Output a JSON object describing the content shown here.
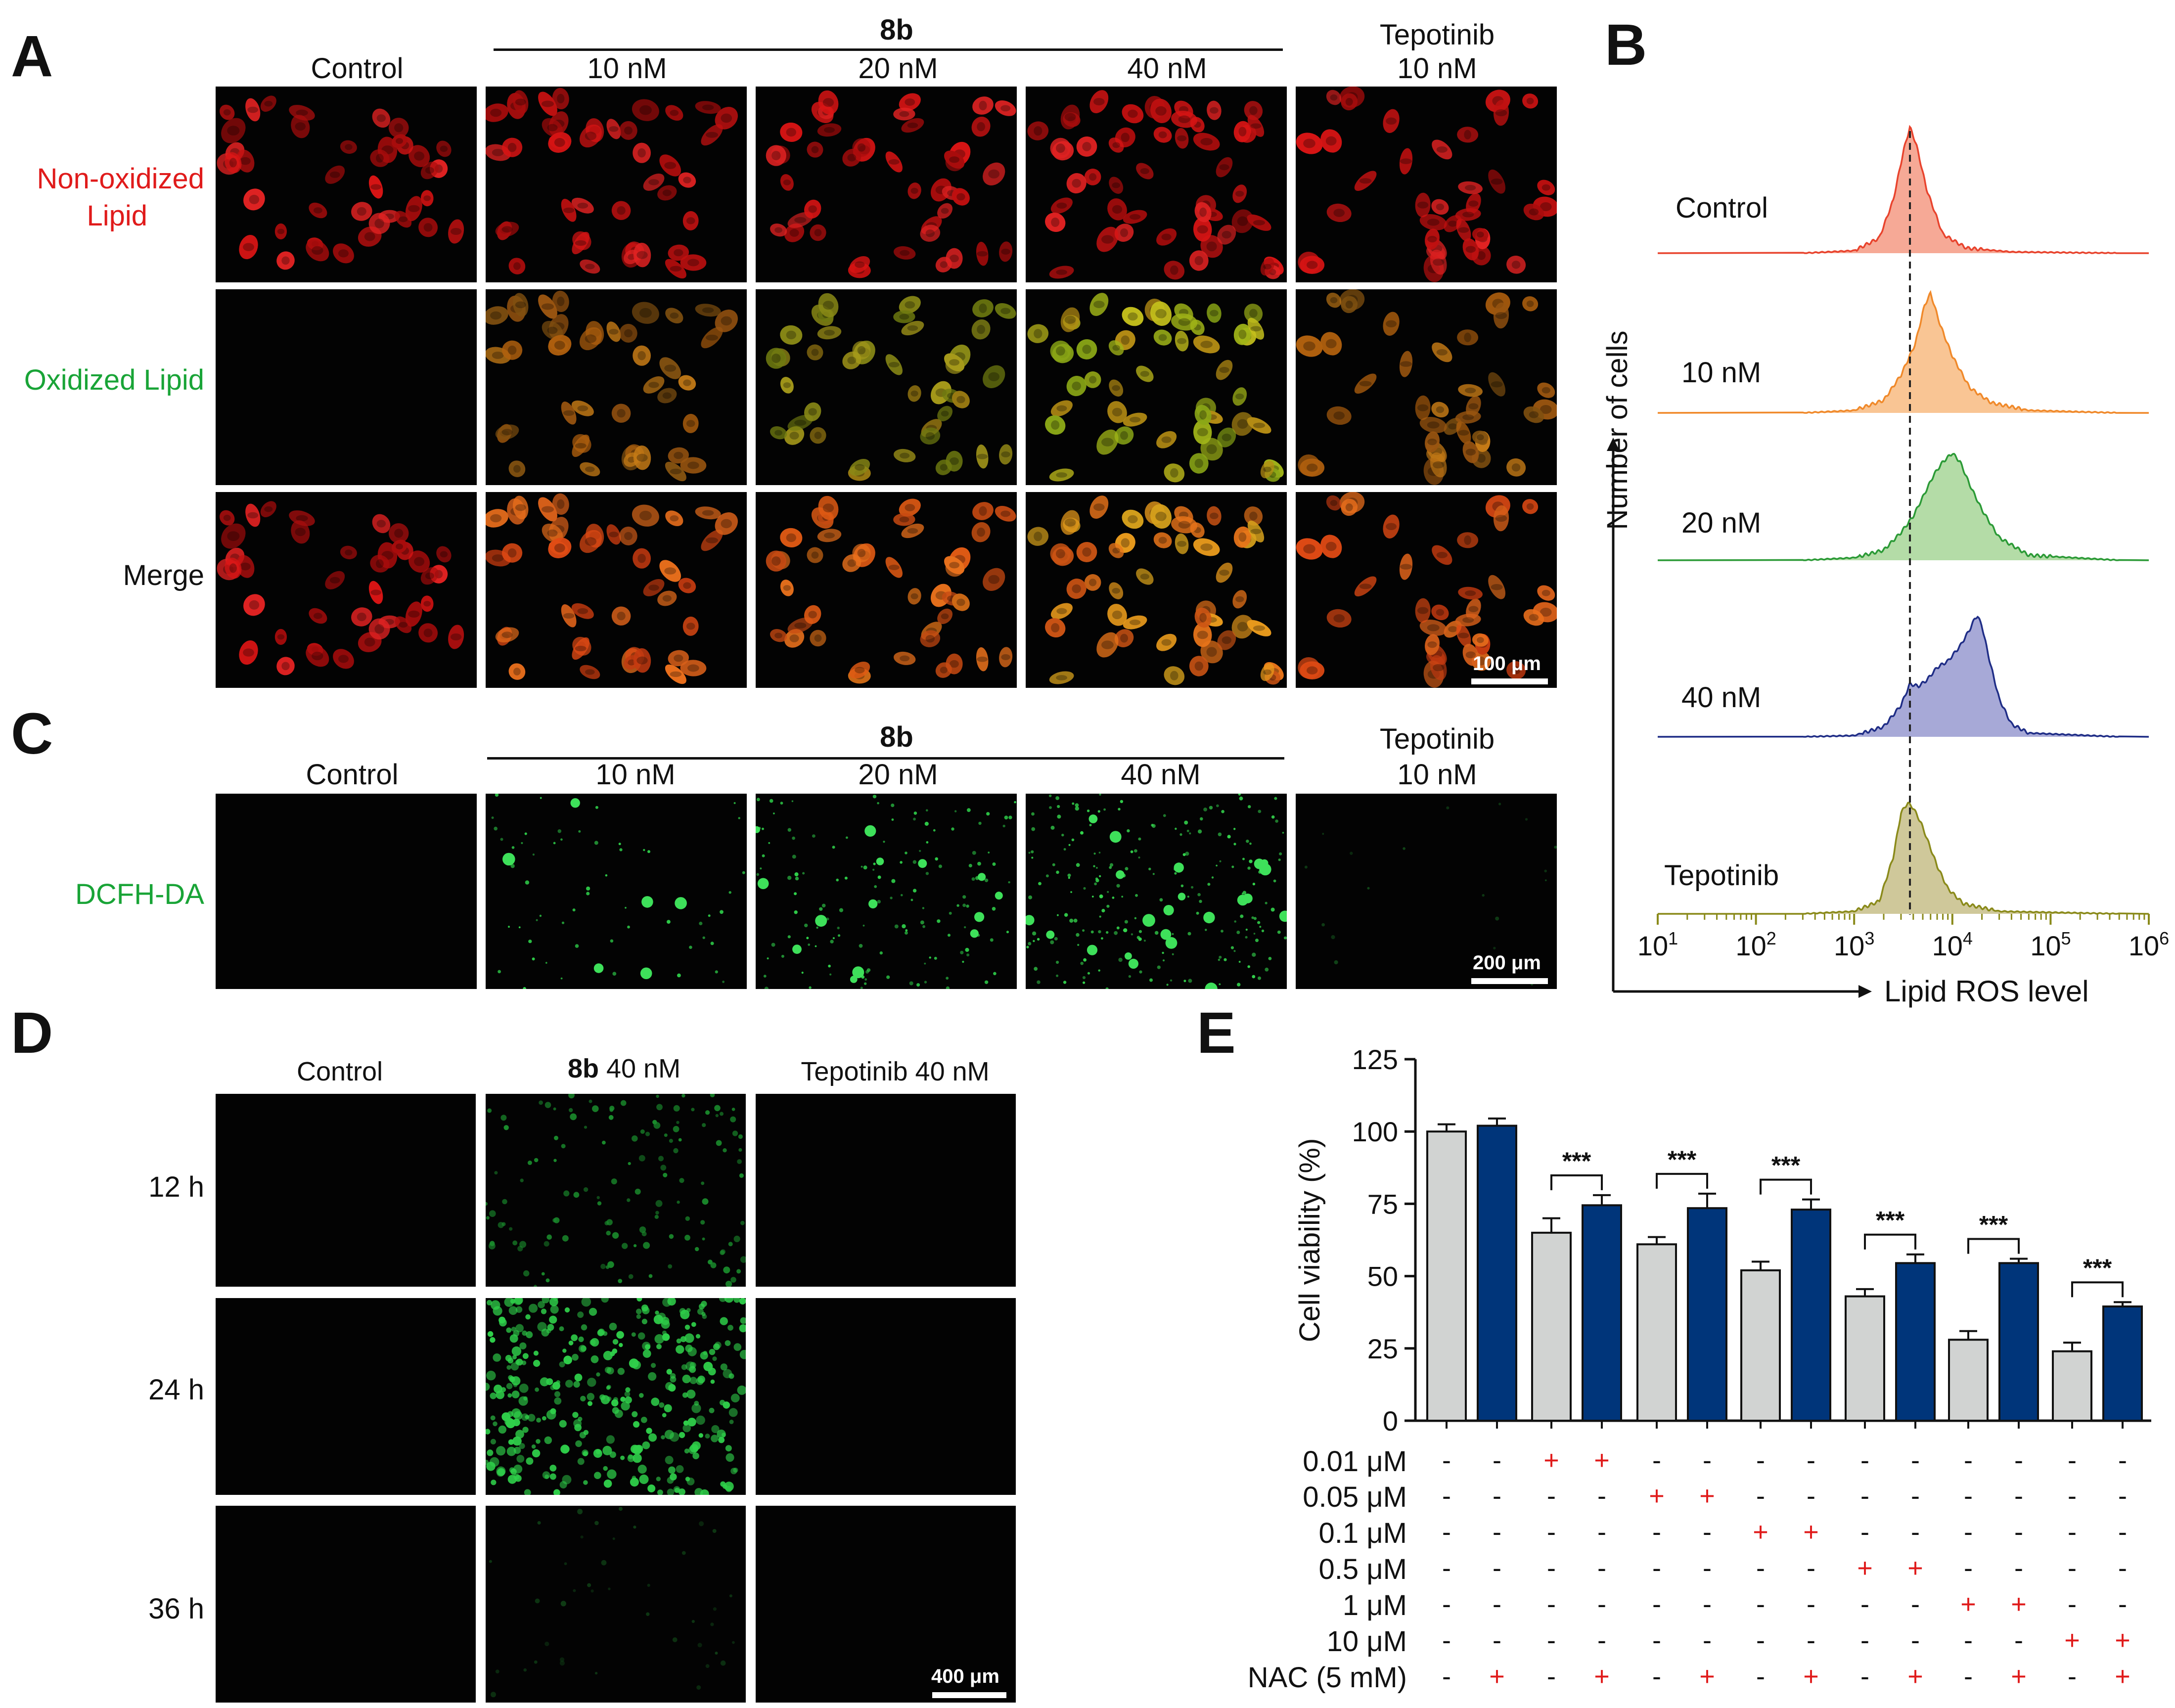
{
  "panelA": {
    "letter": "A",
    "group_label": "8b",
    "columns": [
      "Control",
      "10 nM",
      "20 nM",
      "40 nM"
    ],
    "tepotinib_label_line1": "Tepotinib",
    "tepotinib_label_line2": "10 nM",
    "rows": {
      "nonox_line1": "Non-oxidized",
      "nonox_line2": "Lipid",
      "ox": "Oxidized Lipid",
      "merge": "Merge"
    },
    "scale": "100 μm"
  },
  "panelB": {
    "letter": "B"
  },
  "panelC": {
    "letter": "C",
    "group_label": "8b",
    "columns": [
      "Control",
      "10 nM",
      "20 nM",
      "40 nM"
    ],
    "tepotinib_label_line1": "Tepotinib",
    "tepotinib_label_line2": "10 nM",
    "row": "DCFH-DA",
    "scale": "200 μm"
  },
  "panelD": {
    "letter": "D",
    "col_control": "Control",
    "col_8b_bold": "8b",
    "col_8b_rest": " 40 nM",
    "col_tepotinib": "Tepotinib 40 nM",
    "rows": [
      "12 h",
      "24 h",
      "36 h"
    ],
    "scale": "400 μm"
  },
  "panelE": {
    "letter": "E"
  },
  "chart_data": [
    {
      "type": "area",
      "panel": "B",
      "ylabel": "Number of cells",
      "xlabel": "Lipid ROS level",
      "xscale": "log",
      "xlim": [
        10,
        1000000
      ],
      "xticks": [
        "10",
        "10",
        "10",
        "10",
        "10",
        "10"
      ],
      "xtick_exponents": [
        "1",
        "2",
        "3",
        "4",
        "5",
        "6"
      ],
      "reference_line_x": 3700,
      "series": [
        {
          "name": "Control",
          "color": "#e8432d",
          "fill": "#f6a996",
          "peak": 3700,
          "profile": [
            [
              300,
              0
            ],
            [
              1000,
              0.02
            ],
            [
              1800,
              0.12
            ],
            [
              2500,
              0.42
            ],
            [
              3200,
              0.82
            ],
            [
              3700,
              1.0
            ],
            [
              4300,
              0.86
            ],
            [
              5500,
              0.5
            ],
            [
              8000,
              0.15
            ],
            [
              14000,
              0.04
            ],
            [
              40000,
              0.01
            ],
            [
              500000,
              0
            ]
          ]
        },
        {
          "name": "10 nM",
          "color": "#f0892a",
          "fill": "#f9c594",
          "peak": 6000,
          "profile": [
            [
              300,
              0
            ],
            [
              1000,
              0.02
            ],
            [
              2000,
              0.1
            ],
            [
              3000,
              0.3
            ],
            [
              4200,
              0.55
            ],
            [
              5200,
              0.85
            ],
            [
              6000,
              0.95
            ],
            [
              7500,
              0.7
            ],
            [
              10000,
              0.45
            ],
            [
              15000,
              0.2
            ],
            [
              25000,
              0.08
            ],
            [
              60000,
              0.02
            ],
            [
              500000,
              0
            ]
          ]
        },
        {
          "name": "20 nM",
          "color": "#2b9a36",
          "fill": "#b4dca7",
          "peak": 10000,
          "profile": [
            [
              300,
              0
            ],
            [
              1000,
              0.02
            ],
            [
              2000,
              0.08
            ],
            [
              3000,
              0.22
            ],
            [
              4000,
              0.35
            ],
            [
              5000,
              0.5
            ],
            [
              6500,
              0.68
            ],
            [
              8000,
              0.78
            ],
            [
              10000,
              0.85
            ],
            [
              12000,
              0.78
            ],
            [
              15000,
              0.6
            ],
            [
              20000,
              0.4
            ],
            [
              30000,
              0.18
            ],
            [
              60000,
              0.04
            ],
            [
              500000,
              0
            ]
          ]
        },
        {
          "name": "40 nM",
          "color": "#1f2d86",
          "fill": "#a7a9d7",
          "peak": 18000,
          "profile": [
            [
              300,
              0
            ],
            [
              1000,
              0.01
            ],
            [
              2000,
              0.08
            ],
            [
              3000,
              0.25
            ],
            [
              3700,
              0.42
            ],
            [
              4500,
              0.4
            ],
            [
              5500,
              0.45
            ],
            [
              7000,
              0.55
            ],
            [
              9000,
              0.6
            ],
            [
              12000,
              0.72
            ],
            [
              15000,
              0.85
            ],
            [
              17000,
              0.94
            ],
            [
              18000,
              0.96
            ],
            [
              20000,
              0.88
            ],
            [
              24000,
              0.6
            ],
            [
              30000,
              0.3
            ],
            [
              40000,
              0.1
            ],
            [
              60000,
              0.03
            ],
            [
              500000,
              0
            ]
          ]
        },
        {
          "name": "Tepotinib",
          "color": "#8a8a1a",
          "fill": "#cfc89a",
          "peak": 3500,
          "profile": [
            [
              300,
              0
            ],
            [
              1000,
              0.02
            ],
            [
              1800,
              0.1
            ],
            [
              2500,
              0.45
            ],
            [
              3000,
              0.8
            ],
            [
              3500,
              0.88
            ],
            [
              4000,
              0.84
            ],
            [
              4800,
              0.72
            ],
            [
              5800,
              0.55
            ],
            [
              7000,
              0.38
            ],
            [
              9000,
              0.2
            ],
            [
              13000,
              0.08
            ],
            [
              30000,
              0.02
            ],
            [
              500000,
              0
            ]
          ]
        }
      ]
    },
    {
      "type": "bar",
      "panel": "E",
      "ylabel": "Cell viability (%)",
      "ylim": [
        0,
        125
      ],
      "yticks": [
        "0",
        "25",
        "50",
        "75",
        "100",
        "125"
      ],
      "series": [
        {
          "name": "",
          "color": "#d1d3d2",
          "values": [
            100,
            65,
            61,
            52,
            43,
            28,
            24
          ],
          "errors": [
            2.5,
            5,
            2.5,
            3,
            2.5,
            3,
            3
          ]
        },
        {
          "name": "",
          "color": "#00357a",
          "values": [
            102,
            74.5,
            73.5,
            73,
            54.5,
            54.5,
            39.5
          ],
          "errors": [
            2.5,
            3.5,
            5,
            3.5,
            3,
            1.5,
            1.5
          ]
        }
      ],
      "significance": [
        {
          "label": "***",
          "pair": 1
        },
        {
          "label": "***",
          "pair": 2
        },
        {
          "label": "***",
          "pair": 3
        },
        {
          "label": "***",
          "pair": 4
        },
        {
          "label": "***",
          "pair": 5
        },
        {
          "label": "***",
          "pair": 6
        }
      ],
      "condition_rows": [
        {
          "label": "0.01 μM",
          "marks": [
            "-",
            "-",
            "+",
            "+",
            "-",
            "-",
            "-",
            "-",
            "-",
            "-",
            "-",
            "-",
            "-",
            "-"
          ]
        },
        {
          "label": "0.05 μM",
          "marks": [
            "-",
            "-",
            "-",
            "-",
            "+",
            "+",
            "-",
            "-",
            "-",
            "-",
            "-",
            "-",
            "-",
            "-"
          ]
        },
        {
          "label": "0.1 μM",
          "marks": [
            "-",
            "-",
            "-",
            "-",
            "-",
            "-",
            "+",
            "+",
            "-",
            "-",
            "-",
            "-",
            "-",
            "-"
          ]
        },
        {
          "label": "0.5 μM",
          "marks": [
            "-",
            "-",
            "-",
            "-",
            "-",
            "-",
            "-",
            "-",
            "+",
            "+",
            "-",
            "-",
            "-",
            "-"
          ]
        },
        {
          "label": "1 μM",
          "marks": [
            "-",
            "-",
            "-",
            "-",
            "-",
            "-",
            "-",
            "-",
            "-",
            "-",
            "+",
            "+",
            "-",
            "-"
          ]
        },
        {
          "label": "10 μM",
          "marks": [
            "-",
            "-",
            "-",
            "-",
            "-",
            "-",
            "-",
            "-",
            "-",
            "-",
            "-",
            "-",
            "+",
            "+"
          ]
        },
        {
          "label": "NAC (5 mM)",
          "marks": [
            "-",
            "+",
            "-",
            "+",
            "-",
            "+",
            "-",
            "+",
            "-",
            "+",
            "-",
            "+",
            "-",
            "+"
          ]
        }
      ]
    }
  ]
}
